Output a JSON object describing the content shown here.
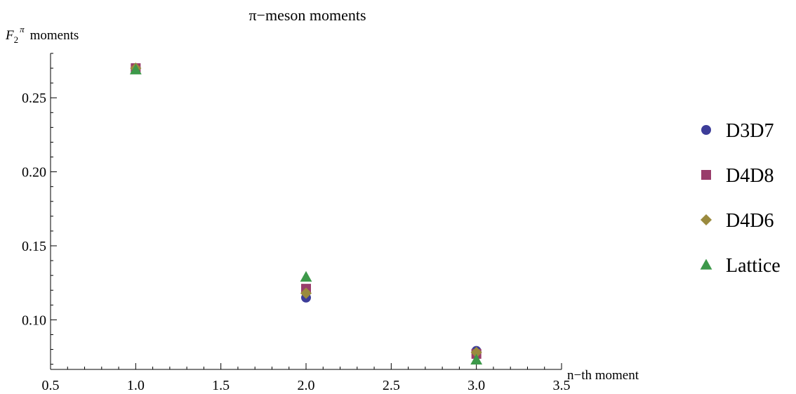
{
  "chart_data": {
    "type": "scatter",
    "title": "π−meson moments",
    "xlabel": "n−th moment",
    "ylabel": "F₂^π moments",
    "ylabel_main": "F",
    "ylabel_sub": "2",
    "ylabel_sup": "π",
    "ylabel_rest": "moments",
    "xlim": [
      0.5,
      3.5
    ],
    "ylim": [
      0.0665,
      0.28
    ],
    "x_ticks": [
      0.5,
      1.0,
      1.5,
      2.0,
      2.5,
      3.0,
      3.5
    ],
    "x_tick_labels": [
      "0.5",
      "1.0",
      "1.5",
      "2.0",
      "2.5",
      "3.0",
      "3.5"
    ],
    "y_ticks": [
      0.1,
      0.15,
      0.2,
      0.25
    ],
    "y_tick_labels": [
      "0.10",
      "0.15",
      "0.20",
      "0.25"
    ],
    "grid": false,
    "legend_position": "right",
    "series": [
      {
        "name": "D3D7",
        "marker": "circle",
        "color": "#3d3d99",
        "x": [
          1,
          2,
          3
        ],
        "y": [
          0.27,
          0.115,
          0.079
        ]
      },
      {
        "name": "D4D8",
        "marker": "square",
        "color": "#993d6b",
        "x": [
          1,
          2,
          3
        ],
        "y": [
          0.27,
          0.121,
          0.077
        ]
      },
      {
        "name": "D4D6",
        "marker": "diamond",
        "color": "#9a8a3e",
        "x": [
          1,
          2,
          3
        ],
        "y": [
          0.27,
          0.118,
          0.078
        ]
      },
      {
        "name": "Lattice",
        "marker": "triangle",
        "color": "#3d994a",
        "x": [
          1,
          2,
          3
        ],
        "y": [
          0.269,
          0.129,
          0.073
        ]
      }
    ]
  }
}
